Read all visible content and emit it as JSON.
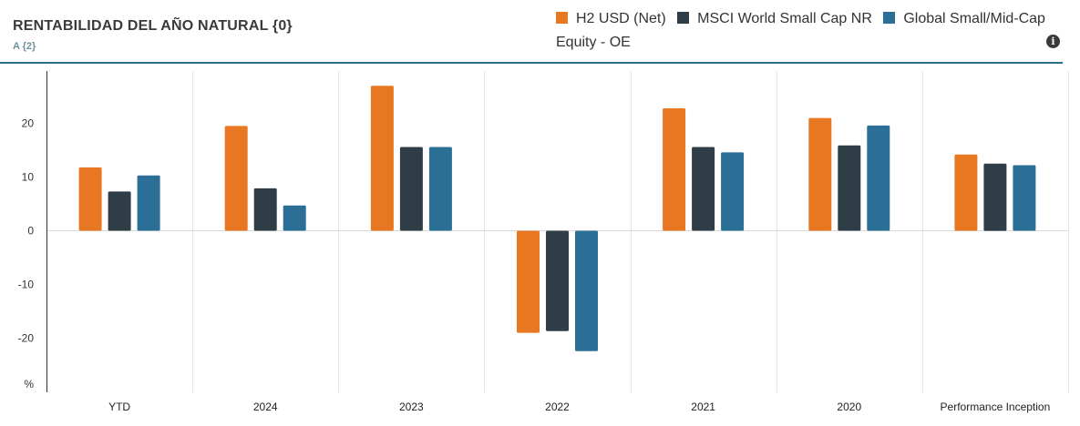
{
  "header": {
    "title": "RENTABILIDAD DEL AÑO NATURAL {0}",
    "subtitle": "A {2}",
    "info_icon": "info-icon"
  },
  "colors": {
    "series_1": "#e87722",
    "series_2": "#2f3e46",
    "series_3": "#2b6e96",
    "accent_line": "#2c6d8f"
  },
  "chart_data": {
    "type": "bar",
    "title": "RENTABILIDAD DEL AÑO NATURAL {0}",
    "subtitle": "A {2}",
    "ylabel": "%",
    "xlabel": "",
    "ylim": [
      -29,
      30
    ],
    "yticks": [
      -20,
      -10,
      0,
      10,
      20
    ],
    "grid": true,
    "legend_position": "top-right",
    "categories": [
      "YTD",
      "2024",
      "2023",
      "2022",
      "2021",
      "2020",
      "Performance Inception"
    ],
    "series": [
      {
        "name": "H2 USD (Net)",
        "color": "#e87722",
        "values": [
          11.8,
          19.5,
          27.0,
          -19.0,
          22.8,
          21.0,
          14.2
        ]
      },
      {
        "name": "MSCI World Small Cap NR",
        "color": "#2f3e46",
        "values": [
          7.3,
          7.9,
          15.6,
          -18.7,
          15.6,
          15.9,
          12.5
        ]
      },
      {
        "name": "Global Small/Mid-Cap Equity - OE",
        "color": "#2b6e96",
        "values": [
          10.3,
          4.7,
          15.6,
          -22.4,
          14.6,
          19.6,
          12.2
        ]
      }
    ]
  }
}
